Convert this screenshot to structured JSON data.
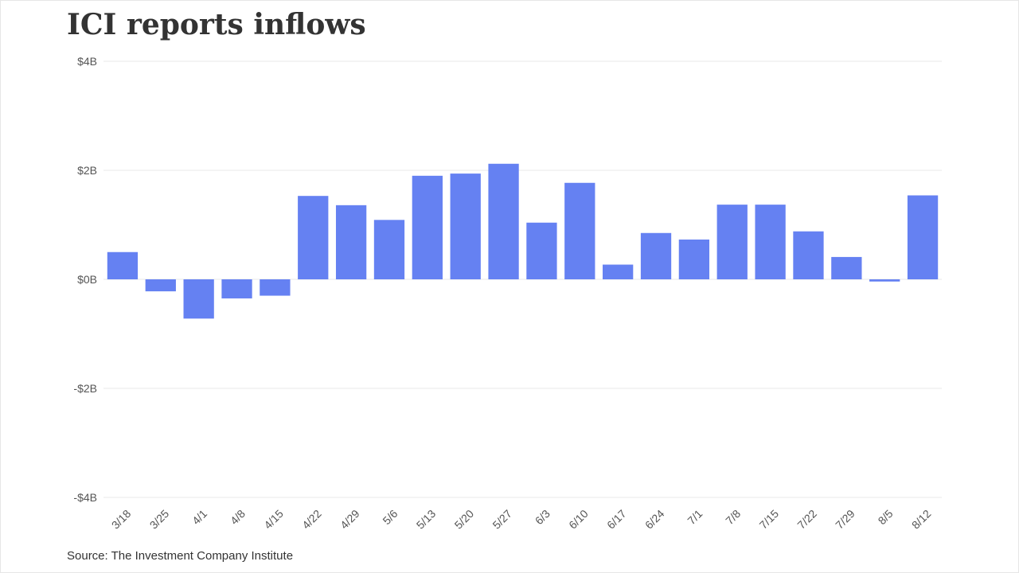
{
  "title": "ICI reports inflows",
  "source": "Source: The Investment Company Institute",
  "colors": {
    "bar": "#6581f2",
    "grid": "#e8e8e8",
    "axis_text": "#555555"
  },
  "chart_data": {
    "type": "bar",
    "title": "ICI reports inflows",
    "xlabel": "",
    "ylabel": "",
    "ylim": [
      -4,
      4
    ],
    "yunit": "B",
    "yticks": [
      {
        "value": 4,
        "label": "$4B"
      },
      {
        "value": 2,
        "label": "$2B"
      },
      {
        "value": 0,
        "label": "$0B"
      },
      {
        "value": -2,
        "label": "-$2B"
      },
      {
        "value": -4,
        "label": "-$4B"
      }
    ],
    "grid": true,
    "categories": [
      "3/18",
      "3/25",
      "4/1",
      "4/8",
      "4/15",
      "4/22",
      "4/29",
      "5/6",
      "5/13",
      "5/20",
      "5/27",
      "6/3",
      "6/10",
      "6/17",
      "6/24",
      "7/1",
      "7/8",
      "7/15",
      "7/22",
      "7/29",
      "8/5",
      "8/12"
    ],
    "values": [
      0.5,
      -0.22,
      -0.72,
      -0.35,
      -0.3,
      1.53,
      1.36,
      1.09,
      1.9,
      1.94,
      2.12,
      1.04,
      1.77,
      0.27,
      0.85,
      0.73,
      1.37,
      1.37,
      0.88,
      0.41,
      -0.04,
      1.54
    ]
  }
}
